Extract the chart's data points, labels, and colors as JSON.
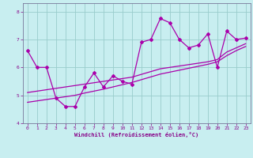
{
  "xlabel": "Windchill (Refroidissement éolien,°C)",
  "bg_color": "#c8eef0",
  "line_color": "#aa00aa",
  "grid_color": "#99cccc",
  "xlim": [
    -0.5,
    23.5
  ],
  "ylim": [
    4.0,
    8.3
  ],
  "xticks": [
    0,
    1,
    2,
    3,
    4,
    5,
    6,
    7,
    8,
    9,
    10,
    11,
    12,
    13,
    14,
    15,
    16,
    17,
    18,
    19,
    20,
    21,
    22,
    23
  ],
  "yticks": [
    4,
    5,
    6,
    7,
    8
  ],
  "series1_x": [
    0,
    1,
    2,
    3,
    4,
    5,
    6,
    7,
    8,
    9,
    10,
    11,
    12,
    13,
    14,
    15,
    16,
    17,
    18,
    19,
    20,
    21,
    22,
    23
  ],
  "series1_y": [
    6.6,
    6.0,
    6.0,
    4.9,
    4.6,
    4.6,
    5.3,
    5.8,
    5.3,
    5.7,
    5.5,
    5.4,
    6.9,
    7.0,
    7.75,
    7.6,
    7.0,
    6.7,
    6.8,
    7.2,
    6.0,
    7.3,
    7.0,
    7.05
  ],
  "series2_x": [
    0,
    1,
    2,
    3,
    4,
    5,
    6,
    7,
    8,
    9,
    10,
    11,
    12,
    13,
    14,
    15,
    16,
    17,
    18,
    19,
    20,
    21,
    22,
    23
  ],
  "series2_y": [
    5.1,
    5.15,
    5.2,
    5.25,
    5.3,
    5.35,
    5.4,
    5.45,
    5.5,
    5.55,
    5.6,
    5.65,
    5.75,
    5.85,
    5.95,
    6.0,
    6.05,
    6.1,
    6.15,
    6.2,
    6.28,
    6.55,
    6.7,
    6.85
  ],
  "series3_x": [
    0,
    1,
    2,
    3,
    4,
    5,
    6,
    7,
    8,
    9,
    10,
    11,
    12,
    13,
    14,
    15,
    16,
    17,
    18,
    19,
    20,
    21,
    22,
    23
  ],
  "series3_y": [
    4.75,
    4.8,
    4.85,
    4.9,
    4.95,
    5.0,
    5.08,
    5.15,
    5.22,
    5.3,
    5.38,
    5.46,
    5.56,
    5.66,
    5.76,
    5.83,
    5.9,
    5.97,
    6.04,
    6.11,
    6.2,
    6.42,
    6.6,
    6.75
  ]
}
